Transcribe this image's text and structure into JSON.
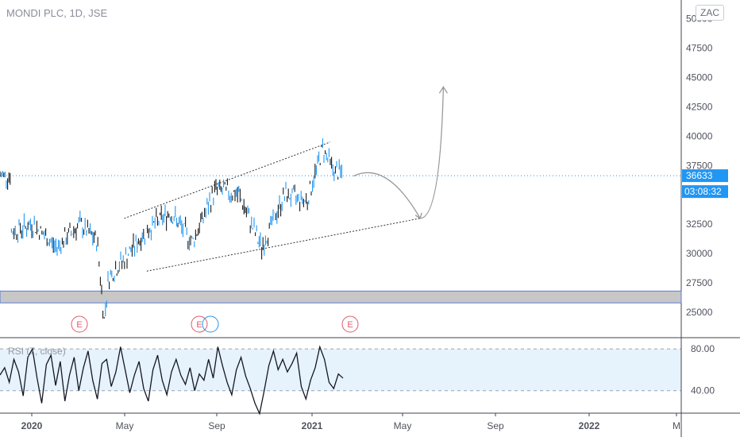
{
  "header": {
    "symbol_title": "MONDI PLC, 1D, JSE",
    "currency": "ZAC"
  },
  "indicator": {
    "rsi_label": "RSI (7, close)"
  },
  "price_tag": {
    "last_price": "36633",
    "countdown": "03:08:32"
  },
  "earnings_marker": "E",
  "colors": {
    "candles": "#2196f3",
    "bar_up": "#2196f3",
    "bar_down": "#1a1a1a",
    "price_line": "#2196f3",
    "rsi_line": "#131722",
    "rsi_band": "#e6f2fc",
    "support_zone": "#c7c7c7",
    "support_border": "#5b7bd8",
    "earnings": "#e05a6b"
  },
  "chart_data": {
    "type": "line",
    "title": "MONDI PLC, 1D, JSE",
    "x_tick_labels": [
      "2020",
      "May",
      "Sep",
      "2021",
      "May",
      "Sep",
      "2022",
      "M"
    ],
    "y_tick_labels": [
      "50000",
      "47500",
      "45000",
      "42500",
      "40000",
      "37500",
      "32500",
      "30000",
      "27500",
      "25000"
    ],
    "y_ticks": [
      50000,
      47500,
      45000,
      42500,
      40000,
      37500,
      32500,
      30000,
      27500,
      25000
    ],
    "ylim": [
      22900,
      51600
    ],
    "last_price": 36633,
    "series": [
      {
        "x": [
          "2019-11",
          "2019-12",
          "2020-01",
          "2020-02",
          "2020-03-10",
          "2020-03-19",
          "2020-03-25",
          "2020-04",
          "2020-05",
          "2020-06",
          "2020-07",
          "2020-08",
          "2020-09",
          "2020-10",
          "2020-11",
          "2020-12",
          "2021-01-05",
          "2021-01-20",
          "2021-02"
        ],
        "values": [
          31800,
          32500,
          30500,
          32500,
          31000,
          24300,
          28000,
          29500,
          32000,
          33500,
          31000,
          35500,
          35000,
          30500,
          35000,
          34500,
          39000,
          37000,
          36633
        ]
      }
    ],
    "drawings": {
      "upper_channel": [
        [
          "2020-04",
          33000
        ],
        [
          "2021-01",
          39500
        ]
      ],
      "lower_channel": [
        [
          "2020-05",
          28500
        ],
        [
          "2021-05",
          33000
        ]
      ],
      "projection_path": [
        [
          "2021-02",
          36600
        ],
        [
          "2021-05",
          33000
        ],
        [
          "2021-06",
          44200
        ]
      ],
      "support_zone": [
        26000,
        26600
      ]
    },
    "rsi": {
      "name": "RSI (7, close)",
      "levels": [
        80.0,
        40.0
      ],
      "level_labels": [
        "80.00",
        "40.00"
      ],
      "ylim": [
        20,
        90
      ],
      "values": [
        55,
        62,
        48,
        70,
        58,
        35,
        72,
        80,
        52,
        28,
        65,
        74,
        45,
        68,
        30,
        55,
        72,
        40,
        62,
        78,
        50,
        32,
        66,
        70,
        44,
        58,
        82,
        60,
        38,
        55,
        68,
        42,
        30,
        60,
        74,
        50,
        36,
        58,
        70,
        55,
        46,
        62,
        40,
        56,
        50,
        70,
        52,
        82,
        64,
        48,
        36,
        60,
        72,
        54,
        42,
        28,
        18,
        40,
        64,
        78,
        60,
        70,
        58,
        66,
        76,
        44,
        32,
        50,
        62,
        82,
        70,
        48,
        42,
        56,
        52
      ]
    }
  }
}
